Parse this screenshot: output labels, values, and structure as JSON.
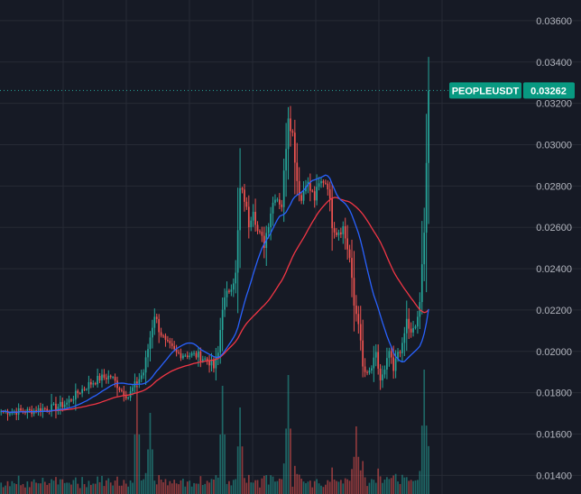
{
  "chart_data": {
    "type": "candlestick",
    "symbol": "PEOPLEUSDT",
    "last_price": "0.03262",
    "ylim": [
      0.0131,
      0.037
    ],
    "yticks": [
      "0.03600",
      "0.03400",
      "0.03200",
      "0.03000",
      "0.02800",
      "0.02600",
      "0.02400",
      "0.02200",
      "0.02000",
      "0.01800",
      "0.01600",
      "0.01400"
    ],
    "grid": true,
    "colors": {
      "up": "#26a69a",
      "down": "#ef5350",
      "ma_fast": "#2962ff",
      "ma_slow": "#f23645",
      "background": "#161a25",
      "grid": "#262a35",
      "badge": "#089981",
      "price_line": "#26a69a"
    },
    "close_anchors": [
      [
        0,
        0.0171
      ],
      [
        12,
        0.0171
      ],
      [
        18,
        0.0172
      ],
      [
        25,
        0.0173
      ],
      [
        30,
        0.0175
      ],
      [
        35,
        0.018
      ],
      [
        40,
        0.0184
      ],
      [
        45,
        0.0187
      ],
      [
        50,
        0.0188
      ],
      [
        55,
        0.0181
      ],
      [
        58,
        0.0178
      ],
      [
        60,
        0.0182
      ],
      [
        65,
        0.019
      ],
      [
        68,
        0.0207
      ],
      [
        70,
        0.0218
      ],
      [
        72,
        0.0211
      ],
      [
        75,
        0.0204
      ],
      [
        80,
        0.0199
      ],
      [
        90,
        0.0198
      ],
      [
        95,
        0.0195
      ],
      [
        97,
        0.0192
      ],
      [
        99,
        0.0199
      ],
      [
        101,
        0.0222
      ],
      [
        104,
        0.023
      ],
      [
        107,
        0.0237
      ],
      [
        109,
        0.0278
      ],
      [
        111,
        0.0274
      ],
      [
        113,
        0.0262
      ],
      [
        115,
        0.027
      ],
      [
        117,
        0.0258
      ],
      [
        120,
        0.0252
      ],
      [
        123,
        0.0268
      ],
      [
        125,
        0.0276
      ],
      [
        128,
        0.0271
      ],
      [
        131,
        0.0315
      ],
      [
        133,
        0.0305
      ],
      [
        135,
        0.0283
      ],
      [
        137,
        0.0273
      ],
      [
        139,
        0.0283
      ],
      [
        141,
        0.0278
      ],
      [
        143,
        0.0274
      ],
      [
        145,
        0.028
      ],
      [
        147,
        0.0283
      ],
      [
        149,
        0.0281
      ],
      [
        151,
        0.0262
      ],
      [
        153,
        0.0258
      ],
      [
        156,
        0.026
      ],
      [
        159,
        0.0245
      ],
      [
        161,
        0.0222
      ],
      [
        163,
        0.0215
      ],
      [
        165,
        0.0192
      ],
      [
        167,
        0.0188
      ],
      [
        169,
        0.0192
      ],
      [
        171,
        0.0198
      ],
      [
        173,
        0.0186
      ],
      [
        175,
        0.019
      ],
      [
        177,
        0.02
      ],
      [
        179,
        0.019
      ],
      [
        181,
        0.02
      ],
      [
        183,
        0.0202
      ],
      [
        185,
        0.0215
      ],
      [
        187,
        0.0208
      ],
      [
        189,
        0.0212
      ],
      [
        191,
        0.0222
      ],
      [
        193,
        0.026
      ],
      [
        194,
        0.0292
      ],
      [
        195,
        0.03262
      ]
    ],
    "volume_spikes": [
      [
        62,
        0.4
      ],
      [
        68,
        0.3
      ],
      [
        101,
        0.4
      ],
      [
        109,
        0.32
      ],
      [
        131,
        0.44
      ],
      [
        162,
        0.25
      ],
      [
        193,
        0.46
      ]
    ]
  },
  "price_badge": {
    "symbol": "PEOPLEUSDT",
    "price": "0.03262"
  }
}
